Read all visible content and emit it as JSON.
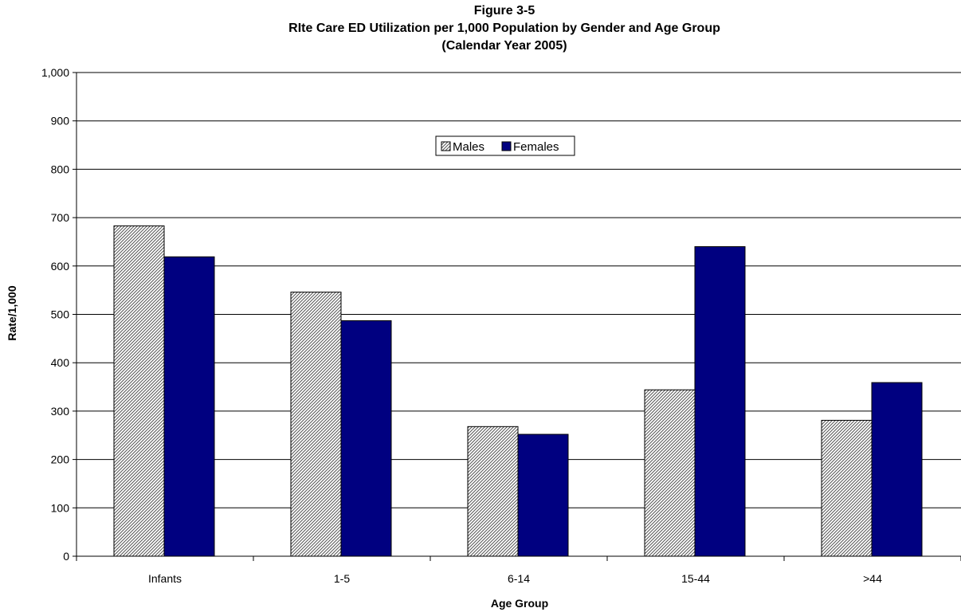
{
  "chart_data": {
    "type": "bar",
    "title_lines": [
      "Figure 3-5",
      "RIte Care ED Utilization per 1,000 Population by Gender and Age Group",
      "(Calendar Year 2005)"
    ],
    "xlabel": "Age Group",
    "ylabel": "Rate/1,000",
    "categories": [
      "Infants",
      "1-5",
      "6-14",
      "15-44",
      ">44"
    ],
    "series": [
      {
        "name": "Males",
        "values": [
          683,
          546,
          268,
          344,
          281
        ],
        "fill": "hatch",
        "color": "#c0c0c0"
      },
      {
        "name": "Females",
        "values": [
          619,
          487,
          252,
          640,
          359
        ],
        "fill": "solid",
        "color": "#000080"
      }
    ],
    "ylim": [
      0,
      1000
    ],
    "yticks": [
      0,
      100,
      200,
      300,
      400,
      500,
      600,
      700,
      800,
      900,
      1000
    ],
    "ytick_labels": [
      "0",
      "100",
      "200",
      "300",
      "400",
      "500",
      "600",
      "700",
      "800",
      "900",
      "1,000"
    ],
    "grid": true,
    "legend_position": "top-center"
  }
}
